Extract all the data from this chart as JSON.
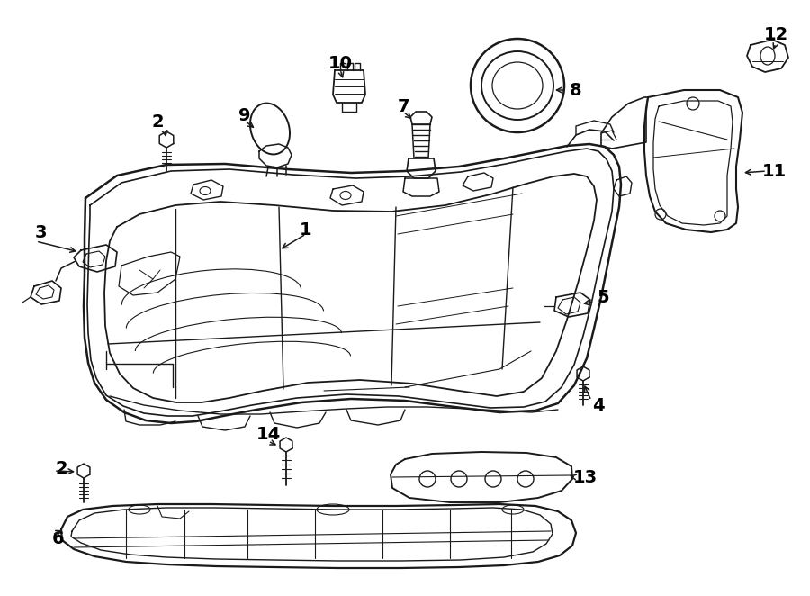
{
  "background_color": "#ffffff",
  "line_color": "#1a1a1a",
  "lw_main": 1.5,
  "lw_detail": 1.0,
  "lw_thin": 0.7,
  "label_fontsize": 14
}
